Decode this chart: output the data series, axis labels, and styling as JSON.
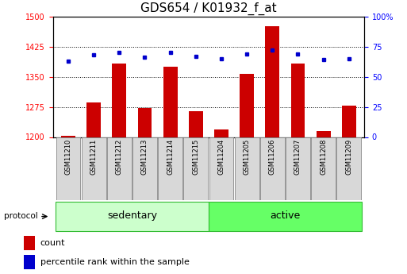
{
  "title": "GDS654 / K01932_f_at",
  "samples": [
    "GSM11210",
    "GSM11211",
    "GSM11212",
    "GSM11213",
    "GSM11214",
    "GSM11215",
    "GSM11204",
    "GSM11205",
    "GSM11206",
    "GSM11207",
    "GSM11208",
    "GSM11209"
  ],
  "groups": [
    "sedentary",
    "sedentary",
    "sedentary",
    "sedentary",
    "sedentary",
    "sedentary",
    "active",
    "active",
    "active",
    "active",
    "active",
    "active"
  ],
  "count_values": [
    1203,
    1285,
    1382,
    1272,
    1375,
    1265,
    1218,
    1358,
    1475,
    1382,
    1215,
    1278
  ],
  "percentile_values": [
    63,
    68,
    70,
    66,
    70,
    67,
    65,
    69,
    72,
    69,
    64,
    65
  ],
  "bar_color": "#cc0000",
  "dot_color": "#0000cc",
  "ylim_left": [
    1200,
    1500
  ],
  "ylim_right": [
    0,
    100
  ],
  "yticks_left": [
    1200,
    1275,
    1350,
    1425,
    1500
  ],
  "yticks_right": [
    0,
    25,
    50,
    75,
    100
  ],
  "group_colors": {
    "sedentary": "#ccffcc",
    "active": "#66ff66"
  },
  "group_edge_color": "#33bb33",
  "sample_bg_color": "#d8d8d8",
  "sample_edge_color": "#888888",
  "sedentary_label": "sedentary",
  "active_label": "active",
  "protocol_label": "protocol",
  "legend_count": "count",
  "legend_percentile": "percentile rank within the sample",
  "title_fontsize": 11,
  "tick_fontsize": 7,
  "sample_fontsize": 6,
  "legend_fontsize": 8,
  "group_fontsize": 9
}
